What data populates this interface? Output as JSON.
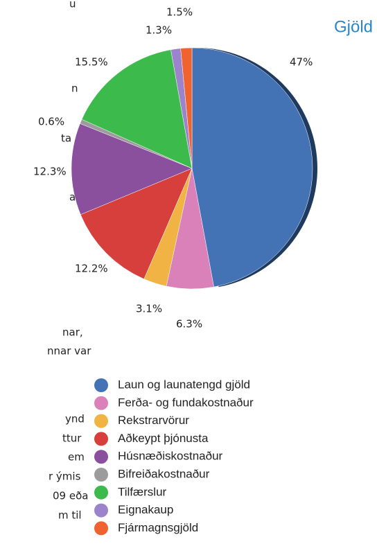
{
  "chart_data": {
    "type": "pie",
    "title": "Gjöld",
    "categories": [
      "Laun og launatengd gjöld",
      "Ferða- og fundakostnaður",
      "Rekstrarvörur",
      "Aðkeypt þjónusta",
      "Húsnæðiskostnaður",
      "Bifreiðakostnaður",
      "Tilfærslur",
      "Eignakaup",
      "Fjármagnsgjöld"
    ],
    "values": [
      47,
      6.3,
      3.1,
      12.2,
      12.3,
      0.6,
      15.5,
      1.3,
      1.5
    ],
    "value_labels": [
      "47%",
      "6.3%",
      "3.1%",
      "12.2%",
      "12.3%",
      "0.6%",
      "15.5%",
      "1.3%",
      "1.5%"
    ],
    "colors": [
      "#4473b5",
      "#d981b8",
      "#f1b344",
      "#d63f3b",
      "#8a4f9d",
      "#9c9c9c",
      "#3dba4c",
      "#9c84cc",
      "#ef6331"
    ]
  },
  "body_text_fragments": [
    "u",
    "n",
    "ta",
    "a",
    "nar,",
    "nnar var",
    "ynd",
    "ttur",
    "em",
    "r ýmis",
    "09 eða",
    "m til"
  ]
}
